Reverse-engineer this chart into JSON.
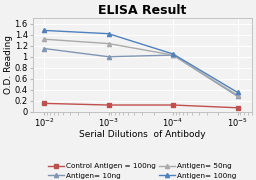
{
  "title": "ELISA Result",
  "xlabel": "Serial Dilutions  of Antibody",
  "ylabel": "O.D. Reading",
  "x": [
    0.01,
    0.001,
    0.0001,
    1e-05
  ],
  "series": [
    {
      "label": "Control Antigen = 100ng",
      "color": "#c0504d",
      "marker": "s",
      "linewidth": 1.0,
      "markersize": 3,
      "values": [
        0.15,
        0.12,
        0.12,
        0.07
      ]
    },
    {
      "label": "Antigen= 10ng",
      "color": "#8096b4",
      "marker": "^",
      "linewidth": 1.0,
      "markersize": 3,
      "values": [
        1.15,
        1.0,
        1.03,
        0.28
      ]
    },
    {
      "label": "Antigen= 50ng",
      "color": "#aaaaaa",
      "marker": "^",
      "linewidth": 1.0,
      "markersize": 3,
      "values": [
        1.32,
        1.24,
        1.03,
        0.3
      ]
    },
    {
      "label": "Antigen= 100ng",
      "color": "#4f81bd",
      "marker": "^",
      "linewidth": 1.0,
      "markersize": 3,
      "values": [
        1.48,
        1.42,
        1.05,
        0.35
      ]
    }
  ],
  "ylim": [
    0,
    1.7
  ],
  "yticks": [
    0,
    0.2,
    0.4,
    0.6,
    0.8,
    1.0,
    1.2,
    1.4,
    1.6
  ],
  "background_color": "#f2f2f2",
  "grid_color": "#ffffff",
  "title_fontsize": 9,
  "label_fontsize": 6.5,
  "tick_fontsize": 6,
  "legend_fontsize": 5.2
}
